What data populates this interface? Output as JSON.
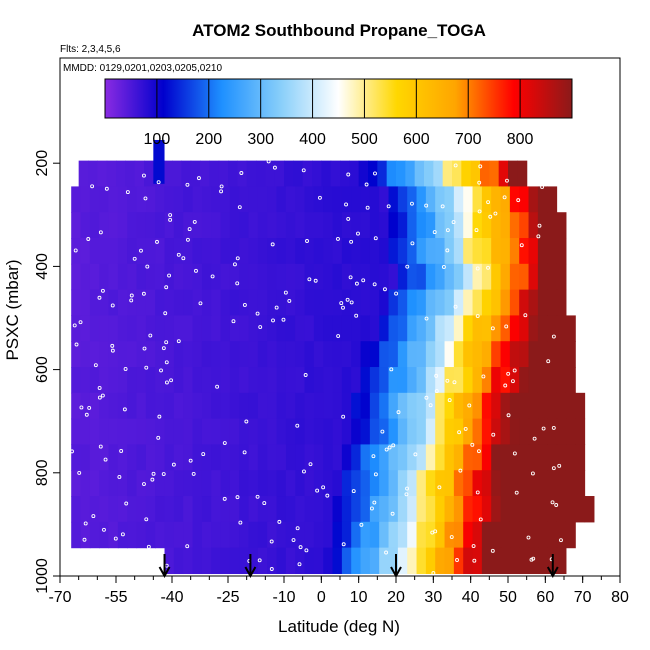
{
  "chart_data": {
    "type": "heatmap",
    "title": "ATOM2 Southbound Propane_TOGA",
    "flights_label": "Flts: 2,3,4,5,6",
    "dates_label": "MMDD: 0129,0201,0203,0205,0210",
    "xlabel": "Latitude (deg N)",
    "ylabel": "PSXC (mbar)",
    "xlim": [
      -70,
      80
    ],
    "ylim": [
      1000,
      0
    ],
    "x_ticks": [
      -70,
      -55,
      -40,
      -25,
      -10,
      0,
      10,
      20,
      30,
      40,
      50,
      60,
      70,
      80
    ],
    "y_ticks": [
      200,
      400,
      600,
      800,
      1000
    ],
    "colorbar": {
      "range": [
        0,
        900
      ],
      "ticks": [
        100,
        200,
        300,
        400,
        500,
        600,
        700,
        800
      ],
      "colors": [
        "#8a2be2",
        "#0000cd",
        "#1e90ff",
        "#87cefa",
        "#ffffff",
        "#ffd700",
        "#ffa500",
        "#ff0000",
        "#8b1a1a"
      ]
    },
    "arrows_latitude": [
      -42,
      -19,
      20,
      62
    ],
    "profile": {
      "bins_pressure_mbar": [
        220,
        270,
        320,
        370,
        420,
        470,
        520,
        570,
        620,
        670,
        720,
        770,
        820,
        870,
        920,
        970
      ],
      "west_edge_lat": [
        -65,
        -67,
        -67,
        -67,
        -67,
        -67,
        -67,
        -67,
        -67,
        -67,
        -67,
        -67,
        -67,
        -67,
        -67,
        -67
      ],
      "east_edge_lat": [
        55,
        63,
        64,
        64,
        64,
        65,
        66,
        67,
        68,
        69,
        70,
        70,
        70,
        72,
        68,
        65
      ],
      "transition_center_lat": [
        33,
        38,
        39,
        39,
        41,
        38,
        35,
        33,
        32,
        30,
        30,
        27,
        26,
        25,
        24,
        22
      ]
    },
    "missing_region": {
      "lat_range": [
        -69,
        -43
      ],
      "pressure_range": [
        960,
        1000
      ]
    },
    "high_cap": {
      "lat_range": [
        -45,
        -42
      ],
      "pressure_range": [
        155,
        240
      ],
      "value": 120
    }
  }
}
